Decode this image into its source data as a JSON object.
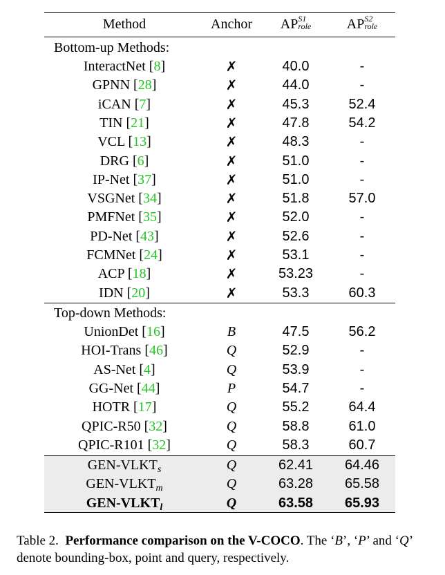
{
  "header": {
    "method": "Method",
    "anchor": "Anchor",
    "ap1_main": "AP",
    "ap1_sup": "S1",
    "ap1_sub": "role",
    "ap2_main": "AP",
    "ap2_sup": "S2",
    "ap2_sub": "role"
  },
  "sections": {
    "bottom_up": "Bottom-up Methods:",
    "top_down": "Top-down Methods:"
  },
  "bottom_up_rows": [
    {
      "name": "InteractNet",
      "ref": "8",
      "anchor": "✗",
      "s1": "40.0",
      "s2": "-"
    },
    {
      "name": "GPNN",
      "ref": "28",
      "anchor": "✗",
      "s1": "44.0",
      "s2": "-"
    },
    {
      "name": "iCAN",
      "ref": "7",
      "anchor": "✗",
      "s1": "45.3",
      "s2": "52.4"
    },
    {
      "name": "TIN",
      "ref": "21",
      "anchor": "✗",
      "s1": "47.8",
      "s2": "54.2"
    },
    {
      "name": "VCL",
      "ref": "13",
      "anchor": "✗",
      "s1": "48.3",
      "s2": "-"
    },
    {
      "name": "DRG",
      "ref": "6",
      "anchor": "✗",
      "s1": "51.0",
      "s2": "-"
    },
    {
      "name": "IP-Net",
      "ref": "37",
      "anchor": "✗",
      "s1": "51.0",
      "s2": "-"
    },
    {
      "name": "VSGNet",
      "ref": "34",
      "anchor": "✗",
      "s1": "51.8",
      "s2": "57.0"
    },
    {
      "name": "PMFNet",
      "ref": "35",
      "anchor": "✗",
      "s1": "52.0",
      "s2": "-"
    },
    {
      "name": "PD-Net",
      "ref": "43",
      "anchor": "✗",
      "s1": "52.6",
      "s2": "-"
    },
    {
      "name": "FCMNet",
      "ref": "24",
      "anchor": "✗",
      "s1": "53.1",
      "s2": "-"
    },
    {
      "name": "ACP",
      "ref": "18",
      "anchor": "✗",
      "s1": "53.23",
      "s2": "-"
    },
    {
      "name": "IDN",
      "ref": "20",
      "anchor": "✗",
      "s1": "53.3",
      "s2": "60.3"
    }
  ],
  "top_down_rows": [
    {
      "name": "UnionDet",
      "ref": "16",
      "anchor": "B",
      "s1": "47.5",
      "s2": "56.2"
    },
    {
      "name": "HOI-Trans",
      "ref": "46",
      "anchor": "Q",
      "s1": "52.9",
      "s2": "-"
    },
    {
      "name": "AS-Net",
      "ref": "4",
      "anchor": "Q",
      "s1": "53.9",
      "s2": "-"
    },
    {
      "name": "GG-Net",
      "ref": "44",
      "anchor": "P",
      "s1": "54.7",
      "s2": "-"
    },
    {
      "name": "HOTR",
      "ref": "17",
      "anchor": "Q",
      "s1": "55.2",
      "s2": "64.4"
    },
    {
      "name": "QPIC-R50",
      "ref": "32",
      "anchor": "Q",
      "s1": "58.8",
      "s2": "61.0"
    },
    {
      "name": "QPIC-R101",
      "ref": "32",
      "anchor": "Q",
      "s1": "58.3",
      "s2": "60.7"
    }
  ],
  "ours_rows": [
    {
      "name": "GEN-VLKT",
      "sub": "s",
      "anchor": "Q",
      "s1": "62.41",
      "s2": "64.46",
      "bold": false
    },
    {
      "name": "GEN-VLKT",
      "sub": "m",
      "anchor": "Q",
      "s1": "63.28",
      "s2": "65.58",
      "bold": false
    },
    {
      "name": "GEN-VLKT",
      "sub": "l",
      "anchor": "Q",
      "s1": "63.58",
      "s2": "65.93",
      "bold": true
    }
  ],
  "caption": {
    "label": "Table 2.",
    "bold": "Performance comparison on the V-COCO",
    "rest1": ". The ‘",
    "b": "B",
    "rest2": "’, ‘",
    "p": "P",
    "rest3": "’ and ‘",
    "q": "Q",
    "rest4": "’ denote bounding-box, point and query, respectively."
  },
  "colors": {
    "ref": "#22c522",
    "shade": "#ececec"
  }
}
